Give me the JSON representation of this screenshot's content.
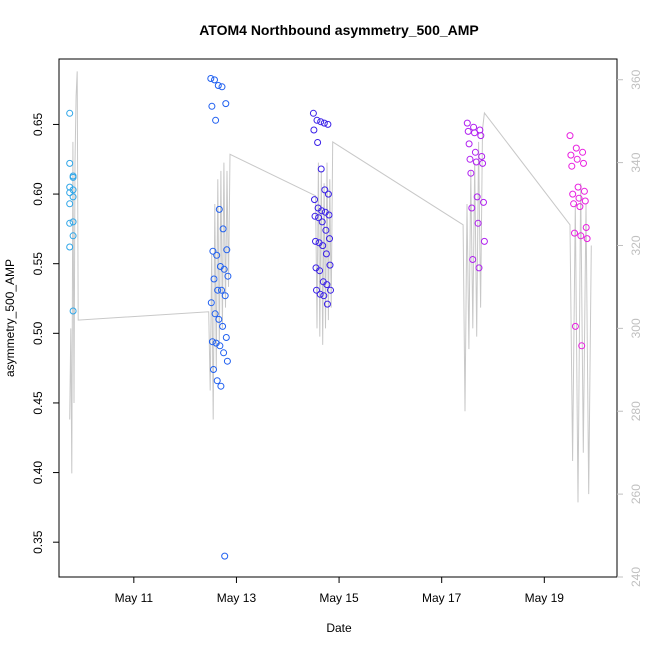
{
  "chart_data": {
    "type": "scatter",
    "title": "ATOM4 Northbound asymmetry_500_AMP",
    "xlabel": "Date",
    "ylabel": "asymmetry_500_AMP",
    "xlim": [
      "2024-05-09 13:00",
      "2024-05-20 10:00"
    ],
    "ylim": [
      0.325,
      0.697
    ],
    "y2lim": [
      240,
      365
    ],
    "x_ticks": [
      {
        "x": "2024-05-11 00:00",
        "label": "May 11"
      },
      {
        "x": "2024-05-13 00:00",
        "label": "May 13"
      },
      {
        "x": "2024-05-15 00:00",
        "label": "May 15"
      },
      {
        "x": "2024-05-17 00:00",
        "label": "May 17"
      },
      {
        "x": "2024-05-19 00:00",
        "label": "May 19"
      }
    ],
    "y_ticks": [
      0.35,
      0.4,
      0.45,
      0.5,
      0.55,
      0.6,
      0.65
    ],
    "y2_ticks": [
      240,
      260,
      280,
      300,
      320,
      340,
      360
    ],
    "grid": false,
    "colors": {
      "g1": "#2fa6e8",
      "g2": "#2060f0",
      "g3": "#3a20e8",
      "g4": "#b020f0",
      "g5": "#e820e0",
      "line": "#c8c8c8",
      "axis": "#000000",
      "axis2": "#c0c0c0"
    },
    "series": [
      {
        "color_key": "g1",
        "x_start": "2024-05-09 18:00",
        "x_end": "2024-05-09 21:00",
        "values": [
          0.658,
          0.613,
          0.622,
          0.612,
          0.605,
          0.603,
          0.601,
          0.598,
          0.593,
          0.58,
          0.579,
          0.57,
          0.562,
          0.516
        ]
      },
      {
        "color_key": "g2",
        "x_start": "2024-05-12 12:00",
        "x_end": "2024-05-12 20:00",
        "values": [
          0.683,
          0.682,
          0.678,
          0.677,
          0.665,
          0.663,
          0.653,
          0.589,
          0.575,
          0.56,
          0.559,
          0.556,
          0.548,
          0.546,
          0.541,
          0.539,
          0.531,
          0.531,
          0.527,
          0.522,
          0.514,
          0.51,
          0.505,
          0.497,
          0.494,
          0.493,
          0.491,
          0.486,
          0.48,
          0.474,
          0.466,
          0.462,
          0.34
        ]
      },
      {
        "color_key": "g3",
        "x_start": "2024-05-14 12:00",
        "x_end": "2024-05-14 20:00",
        "values": [
          0.658,
          0.653,
          0.652,
          0.651,
          0.65,
          0.646,
          0.637,
          0.618,
          0.603,
          0.6,
          0.596,
          0.59,
          0.588,
          0.587,
          0.585,
          0.584,
          0.583,
          0.58,
          0.574,
          0.568,
          0.566,
          0.565,
          0.563,
          0.557,
          0.549,
          0.547,
          0.545,
          0.537,
          0.535,
          0.531,
          0.531,
          0.528,
          0.527,
          0.521
        ]
      },
      {
        "color_key": "g4",
        "x_start": "2024-05-17 12:00",
        "x_end": "2024-05-17 20:00",
        "values": [
          0.651,
          0.648,
          0.646,
          0.645,
          0.644,
          0.642,
          0.636,
          0.63,
          0.627,
          0.625,
          0.623,
          0.622,
          0.615,
          0.598,
          0.594,
          0.59,
          0.579,
          0.566,
          0.553,
          0.547
        ]
      },
      {
        "color_key": "g5",
        "x_start": "2024-05-19 12:00",
        "x_end": "2024-05-19 20:00",
        "values": [
          0.642,
          0.633,
          0.63,
          0.628,
          0.625,
          0.622,
          0.62,
          0.605,
          0.602,
          0.6,
          0.597,
          0.595,
          0.593,
          0.591,
          0.576,
          0.572,
          0.57,
          0.568,
          0.505,
          0.491
        ]
      }
    ],
    "secondary_line": {
      "segments": [
        {
          "x_start": "2024-05-09 18:00",
          "x_end": "2024-05-09 22:00",
          "values": [
            278,
            300,
            265,
            345,
            282,
            340,
            356,
            362,
            302
          ]
        },
        {
          "x": [
            "2024-05-09 22:00",
            "2024-05-12 11:00"
          ],
          "values": [
            302,
            304
          ]
        },
        {
          "x_start": "2024-05-12 11:00",
          "x_end": "2024-05-12 21:00",
          "values": [
            304,
            285,
            318,
            278,
            330,
            290,
            336,
            296,
            338,
            300,
            340,
            305,
            338,
            310,
            342
          ]
        },
        {
          "x": [
            "2024-05-12 21:00",
            "2024-05-14 13:00"
          ],
          "values": [
            342,
            332
          ]
        },
        {
          "x_start": "2024-05-14 13:00",
          "x_end": "2024-05-14 21:00",
          "values": [
            332,
            300,
            340,
            298,
            338,
            296,
            335,
            300,
            340,
            302,
            336,
            305,
            345
          ]
        },
        {
          "x": [
            "2024-05-14 21:00",
            "2024-05-17 10:00"
          ],
          "values": [
            345,
            325
          ]
        },
        {
          "x_start": "2024-05-17 10:00",
          "x_end": "2024-05-17 20:00",
          "values": [
            325,
            280,
            330,
            295,
            338,
            300,
            340,
            298,
            345,
            305,
            348,
            352
          ]
        },
        {
          "x": [
            "2024-05-17 20:00",
            "2024-05-19 12:00"
          ],
          "values": [
            352,
            325
          ]
        },
        {
          "x_start": "2024-05-19 12:00",
          "x_end": "2024-05-19 22:00",
          "values": [
            325,
            268,
            330,
            258,
            335,
            270,
            330,
            260,
            320
          ]
        }
      ]
    }
  }
}
